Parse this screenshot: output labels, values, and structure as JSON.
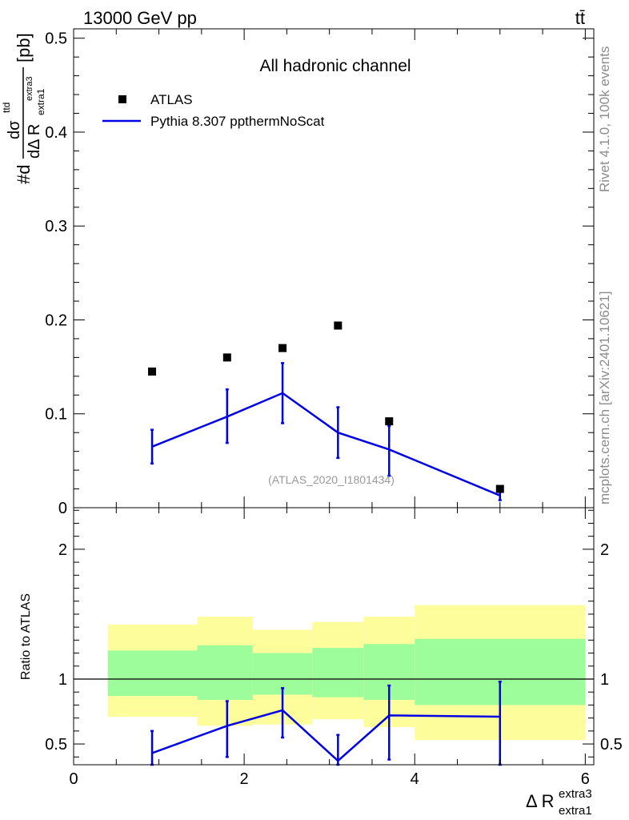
{
  "header": {
    "energy_label": "13000 GeV pp",
    "process_label": "tt̄"
  },
  "side_text": {
    "rivet": "Rivet 4.1.0,  100k events",
    "mcplots": "mcplots.cern.ch [arXiv:2401.10621]"
  },
  "colors": {
    "mc_line": "#0000e6",
    "band_inner": "#9cfd9a",
    "band_outer": "#fdfd9c",
    "data_marker": "#000000",
    "watermark": "#999999"
  },
  "chart_data": [
    {
      "type": "scatter",
      "panel": "main",
      "title": "All hadronic channel",
      "watermark": "(ATLAS_2020_I1801434)",
      "ylabel": {
        "prefix": "#d",
        "sigma": "dσ",
        "sigma_sup": "ttd",
        "den": "dΔ R",
        "den_sub": "extra1",
        "den_sup": "extra3",
        "unit": "[pb]"
      },
      "xlim": [
        0,
        6.1
      ],
      "ylim": [
        0,
        0.51
      ],
      "yticks": [
        {
          "v": 0,
          "label": "0"
        },
        {
          "v": 0.1,
          "label": "0.1"
        },
        {
          "v": 0.2,
          "label": "0.2"
        },
        {
          "v": 0.3,
          "label": "0.3"
        },
        {
          "v": 0.4,
          "label": "0.4"
        },
        {
          "v": 0.5,
          "label": "0.5"
        }
      ],
      "legend": [
        {
          "key": "data",
          "label": "ATLAS"
        },
        {
          "key": "mc",
          "label": "Pythia 8.307 ppthermNoScat"
        }
      ],
      "series": [
        {
          "name": "ATLAS",
          "x": [
            0.92,
            1.8,
            2.45,
            3.1,
            3.7,
            5.0
          ],
          "y": [
            0.145,
            0.16,
            0.17,
            0.194,
            0.092,
            0.02
          ]
        },
        {
          "name": "Pythia 8.307 ppthermNoScat",
          "x": [
            0.92,
            1.8,
            2.45,
            3.1,
            3.7,
            5.0
          ],
          "y": [
            0.065,
            0.097,
            0.122,
            0.08,
            0.062,
            0.013
          ],
          "err_lo": [
            0.047,
            0.069,
            0.09,
            0.053,
            0.034,
            0.008
          ],
          "err_hi": [
            0.083,
            0.126,
            0.154,
            0.107,
            0.087,
            0.018
          ]
        }
      ]
    },
    {
      "type": "area",
      "panel": "ratio",
      "ylabel": "Ratio to ATLAS",
      "xlabel": {
        "base": "Δ R",
        "sup": "extra3",
        "sub": "extra1"
      },
      "xlim": [
        0,
        6.1
      ],
      "ylim": [
        0.34,
        2.32
      ],
      "xticks": [
        {
          "v": 0,
          "label": "0"
        },
        {
          "v": 2,
          "label": "2"
        },
        {
          "v": 4,
          "label": "4"
        },
        {
          "v": 6,
          "label": "6"
        }
      ],
      "yticks": [
        {
          "v": 0.5,
          "label": "0.5"
        },
        {
          "v": 1,
          "label": "1"
        },
        {
          "v": 2,
          "label": "2"
        }
      ],
      "bins": [
        {
          "x0": 0.4,
          "x1": 1.45,
          "inner": [
            0.87,
            1.22
          ],
          "outer": [
            0.71,
            1.42
          ]
        },
        {
          "x0": 1.45,
          "x1": 2.1,
          "inner": [
            0.84,
            1.26
          ],
          "outer": [
            0.64,
            1.48
          ]
        },
        {
          "x0": 2.1,
          "x1": 2.8,
          "inner": [
            0.88,
            1.2
          ],
          "outer": [
            0.65,
            1.38
          ]
        },
        {
          "x0": 2.8,
          "x1": 3.4,
          "inner": [
            0.86,
            1.24
          ],
          "outer": [
            0.69,
            1.44
          ]
        },
        {
          "x0": 3.4,
          "x1": 4.0,
          "inner": [
            0.84,
            1.27
          ],
          "outer": [
            0.63,
            1.48
          ]
        },
        {
          "x0": 4.0,
          "x1": 6.0,
          "inner": [
            0.8,
            1.31
          ],
          "outer": [
            0.53,
            1.57
          ]
        }
      ],
      "reference": 1,
      "series": [
        {
          "name": "Pythia 8.307 ppthermNoScat",
          "x": [
            0.92,
            1.8,
            2.45,
            3.1,
            3.7,
            5.0
          ],
          "y": [
            0.43,
            0.64,
            0.76,
            0.37,
            0.72,
            0.71
          ],
          "err_lo": [
            0.34,
            0.4,
            0.55,
            0.34,
            0.38,
            0.34
          ],
          "err_hi": [
            0.6,
            0.83,
            0.93,
            0.57,
            0.95,
            0.98
          ]
        }
      ]
    }
  ]
}
